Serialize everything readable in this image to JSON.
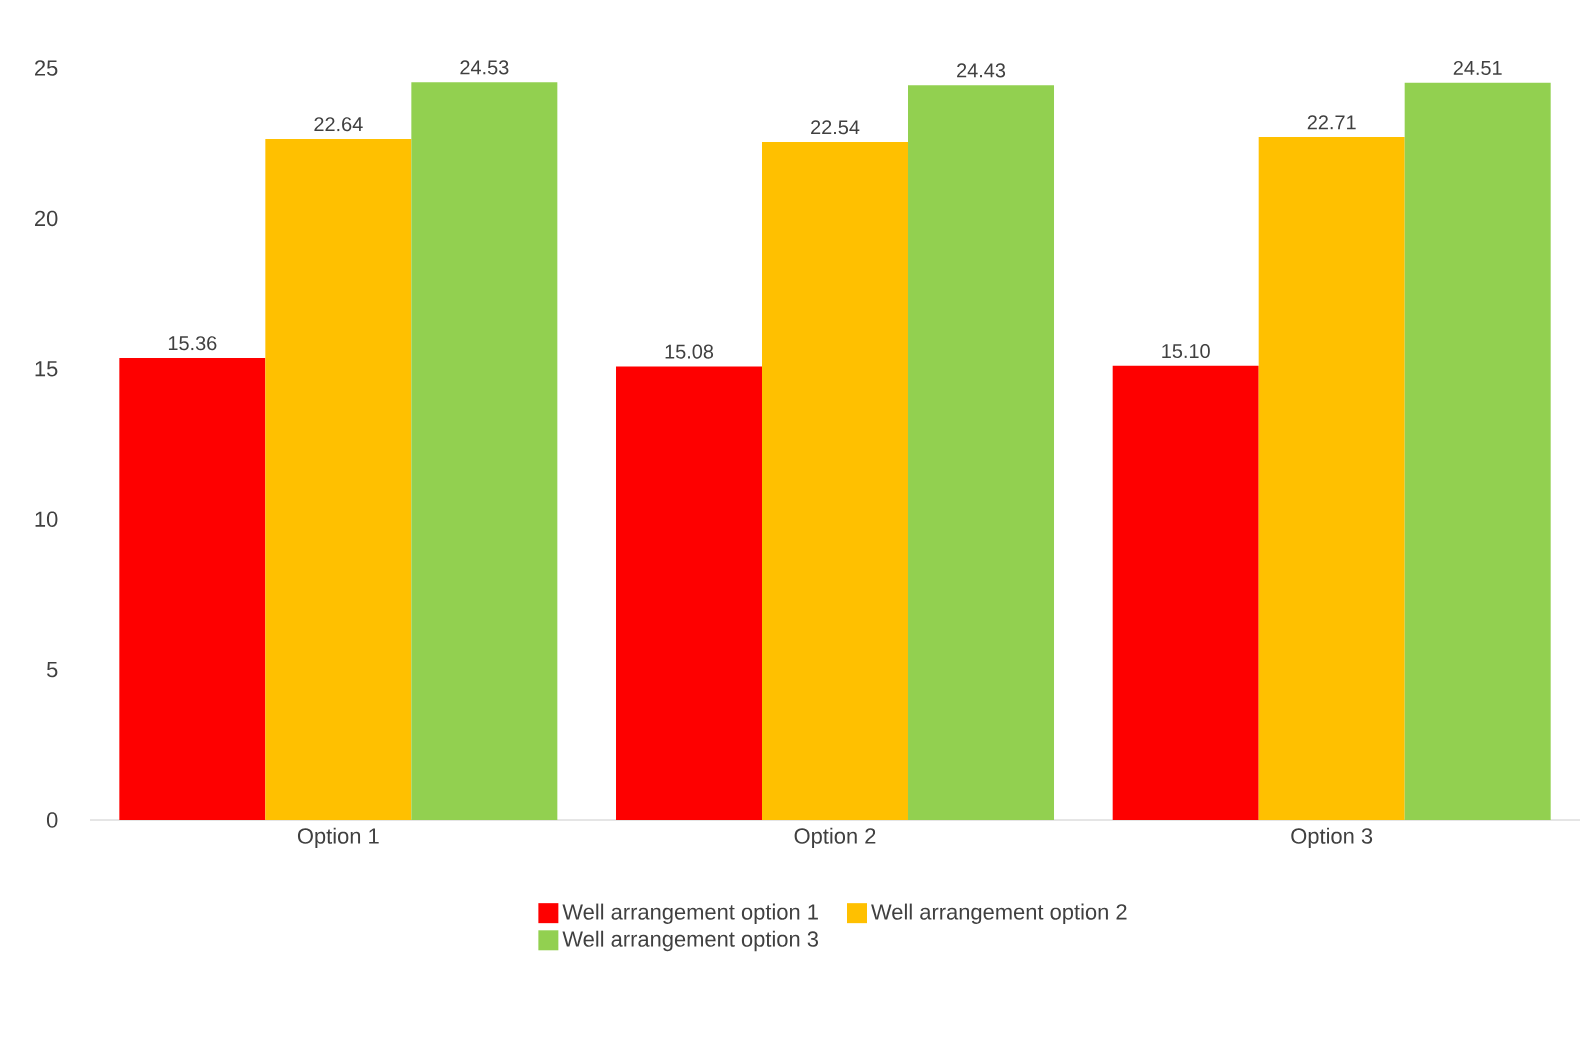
{
  "chart_data": {
    "type": "bar",
    "categories": [
      "Option 1",
      "Option 2",
      "Option 3"
    ],
    "series": [
      {
        "name": "Well arrangement option 1",
        "color": "#fe0000",
        "values": [
          15.36,
          15.08,
          15.1
        ],
        "value_labels": [
          "15.36",
          "15.08",
          "15.10"
        ]
      },
      {
        "name": "Well arrangement option 2",
        "color": "#ffc000",
        "values": [
          22.64,
          22.54,
          22.71
        ],
        "value_labels": [
          "22.64",
          "22.54",
          "22.71"
        ]
      },
      {
        "name": "Well arrangement option 3",
        "color": "#92d050",
        "values": [
          24.53,
          24.43,
          24.51
        ],
        "value_labels": [
          "24.53",
          "24.43",
          "24.51"
        ]
      }
    ],
    "ylim": [
      0,
      25
    ],
    "yticks": [
      0,
      5,
      10,
      15,
      20,
      25
    ],
    "legend": "bottom"
  }
}
